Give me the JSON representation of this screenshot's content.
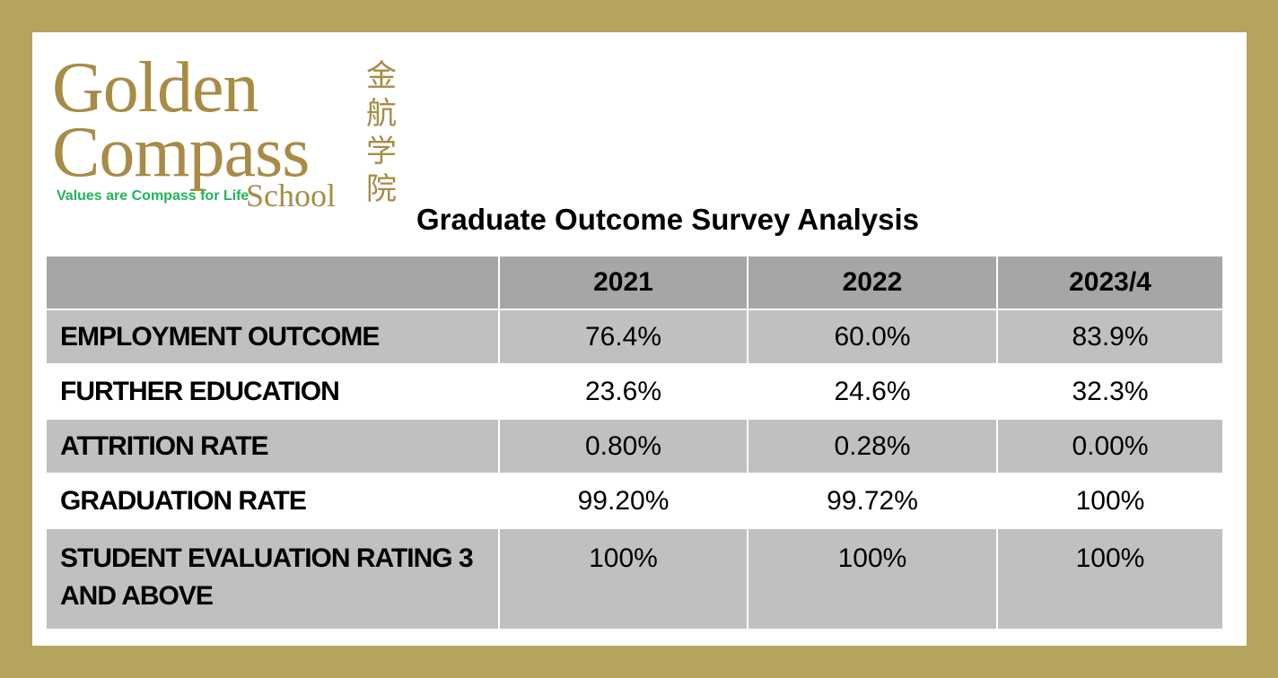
{
  "logo": {
    "line1": "Golden",
    "line2": "Compass",
    "line3": "School",
    "chinese": "金航学院",
    "tagline": "Values are Compass for Life"
  },
  "title": "Graduate Outcome Survey Analysis",
  "table": {
    "headers": [
      "",
      "2021",
      "2022",
      "2023/4"
    ],
    "rows": [
      {
        "label": "EMPLOYMENT OUTCOME",
        "values": [
          "76.4%",
          "60.0%",
          "83.9%"
        ]
      },
      {
        "label": "FURTHER EDUCATION",
        "values": [
          "23.6%",
          "24.6%",
          "32.3%"
        ]
      },
      {
        "label": "ATTRITION RATE",
        "values": [
          "0.80%",
          "0.28%",
          "0.00%"
        ]
      },
      {
        "label": "GRADUATION RATE",
        "values": [
          "99.20%",
          "99.72%",
          "100%"
        ]
      },
      {
        "label": "STUDENT EVALUATION RATING 3 AND ABOVE",
        "values": [
          "100%",
          "100%",
          "100%"
        ]
      }
    ]
  },
  "colors": {
    "frame": "#b5a45c",
    "logo_gold": "#a88b45",
    "tagline_green": "#1fb55a",
    "header_gray": "#a6a6a6",
    "row_gray": "#c0c0c0"
  }
}
